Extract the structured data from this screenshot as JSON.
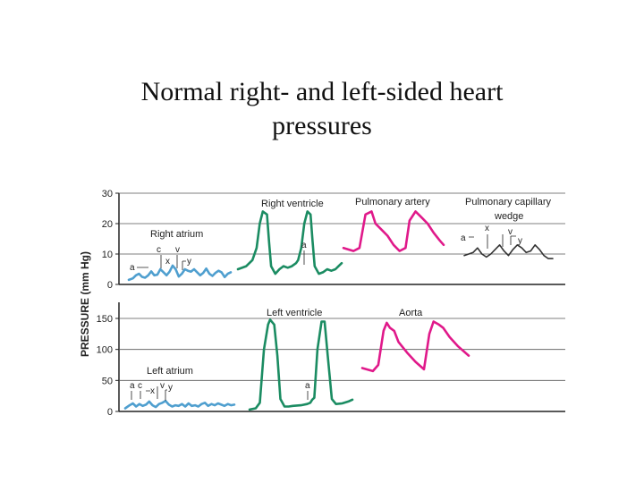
{
  "slide": {
    "title_line1": "Normal right- and left-sided heart",
    "title_line2": "pressures"
  },
  "chart_data": [
    {
      "type": "line",
      "panel": "right-sided",
      "ylabel": "PRESSURE (mm Hg)",
      "ylim": [
        0,
        30
      ],
      "yticks": [
        0,
        10,
        20,
        30
      ],
      "grid": true,
      "colors": {
        "right_atrium": "#4f9fcf",
        "right_ventricle": "#1b8c62",
        "pulmonary_artery": "#e0198a",
        "pulmonary_capillary_wedge": "#333333"
      },
      "series": [
        {
          "key": "right_atrium",
          "name": "Right atrium",
          "x": [
            0,
            0.04,
            0.07,
            0.1,
            0.13,
            0.16,
            0.19,
            0.22,
            0.25,
            0.28,
            0.31,
            0.34,
            0.37,
            0.4,
            0.43,
            0.46,
            0.49,
            0.52,
            0.55,
            0.58,
            0.61,
            0.64,
            0.67,
            0.7,
            0.73,
            0.76,
            0.79,
            0.82,
            0.85,
            0.88,
            0.91,
            0.94,
            0.97,
            1.0
          ],
          "values": [
            1.5,
            2,
            3,
            3.5,
            2.5,
            2.2,
            3,
            4.3,
            3,
            3.2,
            5,
            4,
            3,
            4.2,
            6.2,
            5,
            2.6,
            3.5,
            5,
            4.5,
            4.2,
            5,
            4,
            3,
            3.8,
            5.2,
            3.5,
            2.8,
            3.8,
            4.5,
            4,
            2.4,
            3.5,
            4
          ]
        },
        {
          "key": "right_ventricle",
          "name": "Right ventricle",
          "x": [
            0,
            0.08,
            0.14,
            0.18,
            0.21,
            0.24,
            0.28,
            0.3,
            0.32,
            0.36,
            0.4,
            0.44,
            0.48,
            0.52,
            0.56,
            0.58,
            0.61,
            0.64,
            0.67,
            0.7,
            0.72,
            0.74,
            0.78,
            0.82,
            0.86,
            0.9,
            0.94,
            0.97,
            1.0
          ],
          "values": [
            5,
            6,
            8,
            12,
            20,
            24,
            23,
            14,
            6,
            3.5,
            5,
            6,
            5.5,
            6,
            7,
            8,
            12,
            20,
            24,
            23,
            14,
            6,
            3.5,
            4,
            5,
            4.5,
            5,
            6,
            7
          ]
        },
        {
          "key": "pulmonary_artery",
          "name": "Pulmonary artery",
          "x": [
            0,
            0.1,
            0.16,
            0.22,
            0.28,
            0.32,
            0.38,
            0.44,
            0.5,
            0.56,
            0.62,
            0.66,
            0.72,
            0.78,
            0.84,
            0.9,
            0.96,
            1.0
          ],
          "values": [
            12,
            11,
            12,
            23,
            24,
            20,
            18,
            16,
            13,
            11,
            12,
            21,
            24,
            22,
            20,
            17,
            14.5,
            13
          ]
        },
        {
          "key": "pulmonary_capillary_wedge",
          "name": "Pulmonary capillary wedge",
          "x": [
            0,
            0.05,
            0.1,
            0.15,
            0.2,
            0.25,
            0.3,
            0.35,
            0.4,
            0.45,
            0.5,
            0.55,
            0.6,
            0.65,
            0.7,
            0.75,
            0.8,
            0.85,
            0.9,
            0.95,
            1.0
          ],
          "values": [
            9.5,
            10,
            10.5,
            12,
            10,
            9,
            10,
            11.5,
            13,
            11,
            9.5,
            11.5,
            13,
            12,
            10.5,
            11,
            13,
            11.5,
            9.5,
            8.5,
            8.5
          ]
        }
      ],
      "annotations": {
        "right_atrium": [
          "a",
          "c",
          "x",
          "v",
          "y"
        ],
        "right_ventricle": [
          "a"
        ],
        "pulmonary_capillary_wedge": [
          "a",
          "x",
          "v",
          "y"
        ]
      },
      "labels": {
        "right_atrium": "Right atrium",
        "right_ventricle": "Right ventricle",
        "pulmonary_artery": "Pulmonary artery",
        "pcw_line1": "Pulmonary capillary",
        "pcw_line2": "wedge"
      }
    },
    {
      "type": "line",
      "panel": "left-sided",
      "ylim": [
        0,
        150
      ],
      "yticks": [
        0,
        50,
        100,
        150
      ],
      "grid": true,
      "colors": {
        "left_atrium": "#4f9fcf",
        "left_ventricle": "#1b8c62",
        "aorta": "#e0198a"
      },
      "series": [
        {
          "key": "left_atrium",
          "name": "Left atrium",
          "x": [
            0,
            0.04,
            0.07,
            0.1,
            0.13,
            0.16,
            0.19,
            0.22,
            0.25,
            0.28,
            0.31,
            0.34,
            0.37,
            0.4,
            0.43,
            0.46,
            0.49,
            0.52,
            0.55,
            0.58,
            0.61,
            0.64,
            0.67,
            0.7,
            0.73,
            0.76,
            0.79,
            0.82,
            0.85,
            0.88,
            0.91,
            0.94,
            0.97,
            1.0
          ],
          "values": [
            5,
            10,
            13,
            8,
            12,
            9,
            11,
            16,
            10,
            7,
            12,
            14,
            17,
            11,
            8,
            10,
            9,
            12,
            8,
            13,
            9,
            10,
            8,
            12,
            14,
            9,
            12,
            10,
            13,
            11,
            9,
            12,
            10,
            11
          ]
        },
        {
          "key": "left_ventricle",
          "name": "Left ventricle",
          "x": [
            0,
            0.06,
            0.1,
            0.14,
            0.18,
            0.2,
            0.24,
            0.27,
            0.3,
            0.34,
            0.38,
            0.42,
            0.5,
            0.56,
            0.59,
            0.61,
            0.63,
            0.66,
            0.7,
            0.73,
            0.76,
            0.8,
            0.84,
            0.9,
            0.96,
            1.0
          ],
          "values": [
            3,
            5,
            14,
            100,
            140,
            148,
            140,
            90,
            20,
            8,
            8,
            9,
            10,
            12,
            14,
            19,
            22,
            100,
            145,
            145,
            90,
            20,
            12,
            13,
            16,
            19
          ]
        },
        {
          "key": "aorta",
          "name": "Aorta",
          "x": [
            0,
            0.1,
            0.15,
            0.2,
            0.23,
            0.26,
            0.3,
            0.34,
            0.42,
            0.5,
            0.58,
            0.63,
            0.67,
            0.72,
            0.76,
            0.82,
            0.9,
            1.0
          ],
          "values": [
            70,
            65,
            75,
            130,
            143,
            135,
            130,
            112,
            95,
            80,
            68,
            125,
            145,
            140,
            135,
            120,
            105,
            90
          ]
        }
      ],
      "annotations": {
        "left_atrium": [
          "a",
          "c",
          "x",
          "v",
          "y"
        ],
        "left_ventricle": [
          "a"
        ]
      },
      "labels": {
        "left_atrium": "Left atrium",
        "left_ventricle": "Left ventricle",
        "aorta": "Aorta"
      }
    }
  ]
}
